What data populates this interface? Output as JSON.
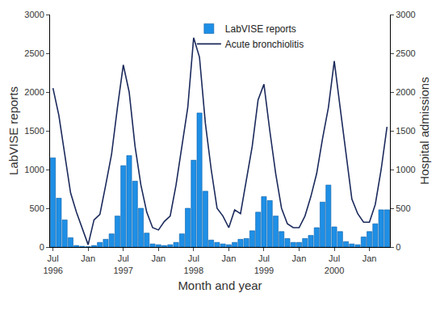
{
  "chart_data": {
    "type": "bar",
    "x_label": "Month and year",
    "y_label": "LabVISE reports",
    "y2_label": "Hospital admissions",
    "categories": [
      "Jul 1996",
      null,
      null,
      null,
      null,
      null,
      "Jan",
      null,
      null,
      null,
      null,
      null,
      "Jul 1997",
      null,
      null,
      null,
      null,
      null,
      "Jan",
      null,
      null,
      null,
      null,
      null,
      "Jul 1998",
      null,
      null,
      null,
      null,
      null,
      "Jan",
      null,
      null,
      null,
      null,
      null,
      "Jul 1999",
      null,
      null,
      null,
      null,
      null,
      "Jan",
      null,
      null,
      null,
      null,
      null,
      "Jul 2000",
      null,
      null,
      null,
      null,
      null,
      "Jan",
      null,
      null,
      null
    ],
    "series": [
      {
        "name": "LabVISE reports",
        "type": "bar",
        "color": "#1e8fe6",
        "values": [
          1150,
          630,
          350,
          120,
          20,
          10,
          5,
          20,
          60,
          100,
          170,
          400,
          1050,
          1180,
          850,
          500,
          180,
          40,
          30,
          20,
          30,
          60,
          170,
          500,
          1120,
          1730,
          720,
          90,
          60,
          40,
          30,
          60,
          100,
          110,
          210,
          450,
          650,
          600,
          400,
          200,
          110,
          60,
          60,
          110,
          150,
          250,
          580,
          800,
          260,
          200,
          70,
          40,
          30,
          130,
          200,
          300,
          480,
          480
        ]
      },
      {
        "name": "Acute bronchiolitis",
        "type": "line",
        "color": "#1b2a5c",
        "axis": "y2",
        "values": [
          2050,
          1700,
          1200,
          700,
          450,
          250,
          30,
          350,
          420,
          800,
          1200,
          1800,
          2350,
          2000,
          1300,
          800,
          450,
          250,
          220,
          330,
          400,
          800,
          1300,
          1800,
          2700,
          2450,
          1600,
          1000,
          500,
          400,
          250,
          480,
          430,
          850,
          1300,
          1900,
          2100,
          1500,
          950,
          500,
          300,
          250,
          250,
          400,
          650,
          950,
          1400,
          1800,
          2400,
          1800,
          1200,
          620,
          430,
          320,
          320,
          550,
          1000,
          1550
        ]
      }
    ],
    "ylim": [
      0,
      3000
    ],
    "yticks": [
      0,
      500,
      1000,
      1500,
      2000,
      2500,
      3000
    ],
    "y2lim": [
      0,
      3000
    ],
    "y2ticks": [
      0,
      500,
      1000,
      1500,
      2000,
      2500,
      3000
    ],
    "grid": false,
    "legend": "top"
  }
}
